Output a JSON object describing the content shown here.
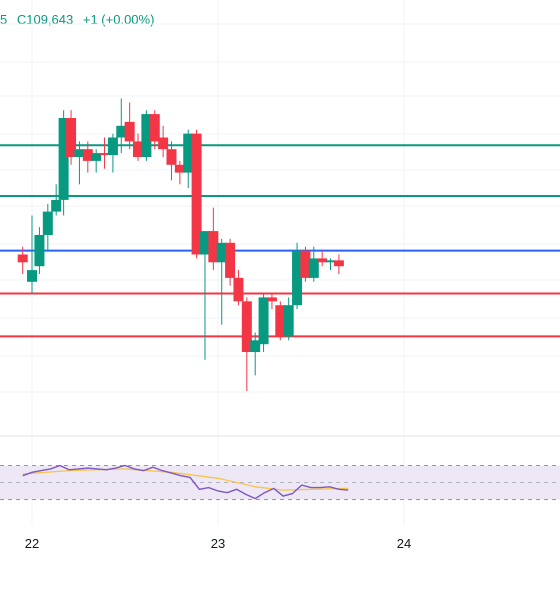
{
  "header": {
    "fragment": "5",
    "close": "C109,643",
    "change": "+1 (+0.00%)"
  },
  "colors": {
    "up": "#089981",
    "down": "#f23645",
    "blue_line": "#2962ff",
    "green_line": "#089981",
    "red_line": "#f23645",
    "rsi_line": "#7e57c2",
    "rsi_ma": "#f7c548",
    "rsi_band": "#ede7f6",
    "grid": "#f0f3fa"
  },
  "chart_data": [
    {
      "type": "candlestick",
      "title": "",
      "x_ticks": [
        "22",
        "23",
        "24"
      ],
      "ylim": [
        0,
        100
      ],
      "candles": [
        {
          "x": -0.05,
          "open": 45.0,
          "high": 47.0,
          "low": 40.0,
          "close": 43.0
        },
        {
          "x": 0.0,
          "open": 38.0,
          "high": 55.0,
          "low": 35.0,
          "close": 41.0
        },
        {
          "x": 0.04,
          "open": 42.0,
          "high": 52.0,
          "low": 40.0,
          "close": 50.0
        },
        {
          "x": 0.085,
          "open": 50.0,
          "high": 58.0,
          "low": 46.0,
          "close": 56.0
        },
        {
          "x": 0.13,
          "open": 56.0,
          "high": 63.0,
          "low": 55.0,
          "close": 59.0
        },
        {
          "x": 0.17,
          "open": 59.0,
          "high": 82.0,
          "low": 55.0,
          "close": 80.0
        },
        {
          "x": 0.21,
          "open": 80.0,
          "high": 82.0,
          "low": 68.0,
          "close": 70.0
        },
        {
          "x": 0.255,
          "open": 70.0,
          "high": 74.0,
          "low": 63.0,
          "close": 72.0
        },
        {
          "x": 0.3,
          "open": 72.0,
          "high": 74.0,
          "low": 66.0,
          "close": 69.0
        },
        {
          "x": 0.345,
          "open": 69.0,
          "high": 72.0,
          "low": 66.0,
          "close": 71.0
        },
        {
          "x": 0.39,
          "open": 71.0,
          "high": 75.0,
          "low": 67.0,
          "close": 70.5
        },
        {
          "x": 0.435,
          "open": 70.5,
          "high": 76.0,
          "low": 66.0,
          "close": 75.0
        },
        {
          "x": 0.48,
          "open": 75.0,
          "high": 85.0,
          "low": 71.0,
          "close": 78.0
        },
        {
          "x": 0.525,
          "open": 79.0,
          "high": 84.0,
          "low": 72.0,
          "close": 74.0
        },
        {
          "x": 0.57,
          "open": 74.0,
          "high": 76.0,
          "low": 69.0,
          "close": 70.0
        },
        {
          "x": 0.615,
          "open": 70.0,
          "high": 82.0,
          "low": 69.0,
          "close": 81.0
        },
        {
          "x": 0.66,
          "open": 81.0,
          "high": 82.0,
          "low": 72.0,
          "close": 74.0
        },
        {
          "x": 0.705,
          "open": 75.0,
          "high": 78.0,
          "low": 70.0,
          "close": 72.0
        },
        {
          "x": 0.75,
          "open": 72.0,
          "high": 74.0,
          "low": 64.0,
          "close": 68.0
        },
        {
          "x": 0.795,
          "open": 68.0,
          "high": 69.0,
          "low": 63.0,
          "close": 66.0
        },
        {
          "x": 0.84,
          "open": 66.0,
          "high": 77.0,
          "low": 62.0,
          "close": 76.0
        },
        {
          "x": 0.885,
          "open": 76.0,
          "high": 77.0,
          "low": 44.0,
          "close": 45.0
        },
        {
          "x": 0.93,
          "open": 45.0,
          "high": 51.0,
          "low": 18.0,
          "close": 51.0
        },
        {
          "x": 0.975,
          "open": 51.0,
          "high": 57.0,
          "low": 41.0,
          "close": 43.0
        },
        {
          "x": 1.02,
          "open": 43.0,
          "high": 49.0,
          "low": 27.0,
          "close": 48.0
        },
        {
          "x": 1.065,
          "open": 48.0,
          "high": 49.0,
          "low": 37.0,
          "close": 39.0
        },
        {
          "x": 1.11,
          "open": 39.0,
          "high": 41.0,
          "low": 32.0,
          "close": 33.0
        },
        {
          "x": 1.155,
          "open": 33.0,
          "high": 34.0,
          "low": 10.0,
          "close": 20.0
        },
        {
          "x": 1.2,
          "open": 20.0,
          "high": 25.0,
          "low": 14.0,
          "close": 23.0
        },
        {
          "x": 1.245,
          "open": 22.0,
          "high": 35.0,
          "low": 20.0,
          "close": 34.0
        },
        {
          "x": 1.29,
          "open": 34.0,
          "high": 35.0,
          "low": 31.0,
          "close": 33.0
        },
        {
          "x": 1.335,
          "open": 32.0,
          "high": 33.0,
          "low": 23.0,
          "close": 24.0
        },
        {
          "x": 1.38,
          "open": 24.0,
          "high": 34.0,
          "low": 23.0,
          "close": 32.0
        },
        {
          "x": 1.425,
          "open": 32.0,
          "high": 48.0,
          "low": 31.0,
          "close": 46.0
        },
        {
          "x": 1.47,
          "open": 46.0,
          "high": 47.0,
          "low": 38.0,
          "close": 39.0
        },
        {
          "x": 1.515,
          "open": 39.0,
          "high": 47.0,
          "low": 38.0,
          "close": 44.0
        },
        {
          "x": 1.56,
          "open": 44.0,
          "high": 46.0,
          "low": 42.0,
          "close": 43.0
        },
        {
          "x": 1.605,
          "open": 43.0,
          "high": 44.0,
          "low": 41.0,
          "close": 43.5
        },
        {
          "x": 1.65,
          "open": 43.5,
          "high": 45.0,
          "low": 40.0,
          "close": 42.0
        }
      ],
      "horizontal_lines": [
        {
          "level": 73.0,
          "color": "green"
        },
        {
          "level": 60.0,
          "color": "green"
        },
        {
          "level": 46.0,
          "color": "blue"
        },
        {
          "level": 35.0,
          "color": "red"
        },
        {
          "level": 24.0,
          "color": "red"
        }
      ]
    },
    {
      "type": "line",
      "title": "",
      "ylim": [
        0,
        100
      ],
      "band": [
        30,
        70
      ],
      "series": [
        {
          "values": [
            [
              -0.05,
              58
            ],
            [
              0.0,
              62
            ],
            [
              0.05,
              64
            ],
            [
              0.1,
              66
            ],
            [
              0.15,
              70
            ],
            [
              0.2,
              65
            ],
            [
              0.25,
              66
            ],
            [
              0.3,
              67
            ],
            [
              0.35,
              66
            ],
            [
              0.4,
              65
            ],
            [
              0.45,
              67
            ],
            [
              0.5,
              70
            ],
            [
              0.55,
              66
            ],
            [
              0.6,
              64
            ],
            [
              0.65,
              68
            ],
            [
              0.7,
              64
            ],
            [
              0.75,
              61
            ],
            [
              0.8,
              58
            ],
            [
              0.85,
              56
            ],
            [
              0.9,
              42
            ],
            [
              0.95,
              44
            ],
            [
              1.0,
              40
            ],
            [
              1.05,
              38
            ],
            [
              1.1,
              42
            ],
            [
              1.15,
              36
            ],
            [
              1.2,
              31
            ],
            [
              1.25,
              38
            ],
            [
              1.3,
              43
            ],
            [
              1.35,
              34
            ],
            [
              1.4,
              37
            ],
            [
              1.45,
              47
            ],
            [
              1.5,
              44
            ],
            [
              1.55,
              44
            ],
            [
              1.6,
              45
            ],
            [
              1.65,
              42
            ],
            [
              1.7,
              41
            ]
          ]
        },
        {
          "values": [
            [
              -0.05,
              60
            ],
            [
              0.2,
              64
            ],
            [
              0.5,
              66
            ],
            [
              0.75,
              62
            ],
            [
              1.0,
              55
            ],
            [
              1.2,
              45
            ],
            [
              1.35,
              41
            ],
            [
              1.5,
              42
            ],
            [
              1.7,
              43
            ]
          ]
        }
      ]
    }
  ]
}
